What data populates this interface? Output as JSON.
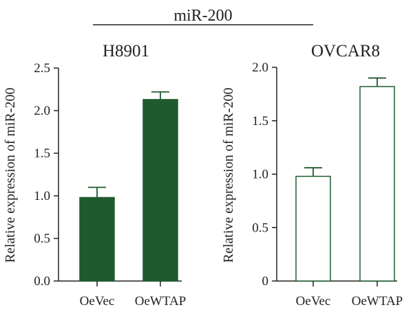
{
  "figure": {
    "title": "miR-200"
  },
  "chart_data": [
    {
      "type": "bar",
      "title": "H8901",
      "ylabel": "Relative expression of miR-200",
      "xlabel": "",
      "categories": [
        "OeVec",
        "OeWTAP"
      ],
      "values": [
        0.98,
        2.13
      ],
      "errors": [
        0.12,
        0.09
      ],
      "ylim": [
        0,
        2.5
      ],
      "yticks": [
        "0.0",
        "0.5",
        "1.0",
        "1.5",
        "2.0",
        "2.5"
      ],
      "bar_style": "filled",
      "color": "#1e5a2e",
      "grid": false
    },
    {
      "type": "bar",
      "title": "OVCAR8",
      "ylabel": "Relative expression of miR-200",
      "xlabel": "",
      "categories": [
        "OeVec",
        "OeWTAP"
      ],
      "values": [
        0.98,
        1.82
      ],
      "errors": [
        0.08,
        0.08
      ],
      "ylim": [
        0,
        2.0
      ],
      "yticks": [
        "0",
        "0.5",
        "1.0",
        "1.5",
        "2.0"
      ],
      "bar_style": "outline",
      "color": "#1e5a2e",
      "grid": false
    }
  ]
}
